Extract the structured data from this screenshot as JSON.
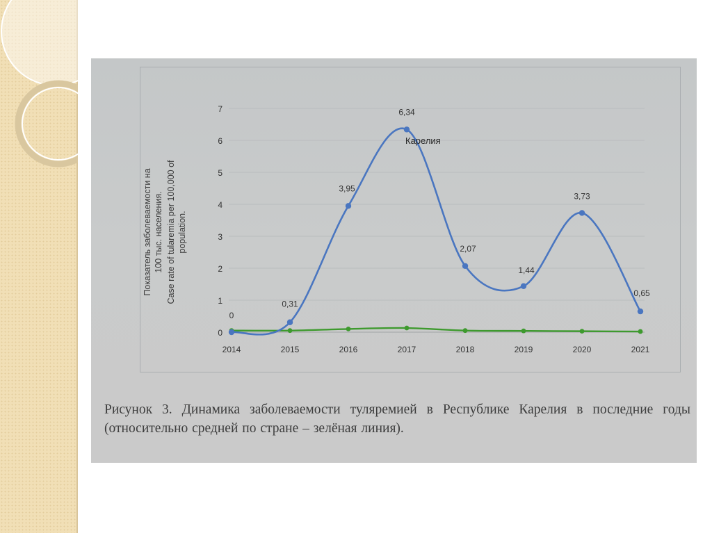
{
  "caption": "Рисунок 3. Динамика заболеваемости туляремией в Республике Карелия в последние годы (относительно средней по стране – зелёная линия).",
  "colors": {
    "background": "#ffffff",
    "deco_strip": "#f1dfb6",
    "photo_background": "#c6c8c9",
    "blue_series": "#4a76c0",
    "green_series": "#3e9a2e",
    "text": "#3d3d3d"
  },
  "chart_data": {
    "type": "line",
    "title": "",
    "ylabel": [
      "Показатель заболеваемости на",
      "100 тыс. населения.",
      "Case rate of tularemia per 100,000 of",
      "population."
    ],
    "xlabel": "",
    "x": [
      "2014",
      "2015",
      "2016",
      "2017",
      "2018",
      "2019",
      "2020",
      "2021"
    ],
    "ylim": [
      0,
      7
    ],
    "yticks": [
      0,
      1,
      2,
      3,
      4,
      5,
      6,
      7
    ],
    "smooth": true,
    "grid": true,
    "series": [
      {
        "name": "Карелия",
        "color": "#4a76c0",
        "values": [
          0,
          0.31,
          3.95,
          6.34,
          2.07,
          1.44,
          3.73,
          0.65
        ],
        "labels": [
          "0",
          "0,31",
          "3,95",
          "6,34",
          "2,07",
          "1,44",
          "3,73",
          "0,65"
        ]
      },
      {
        "color": "#3e9a2e",
        "values": [
          0.05,
          0.05,
          0.1,
          0.13,
          0.05,
          0.04,
          0.03,
          0.02
        ]
      }
    ]
  }
}
